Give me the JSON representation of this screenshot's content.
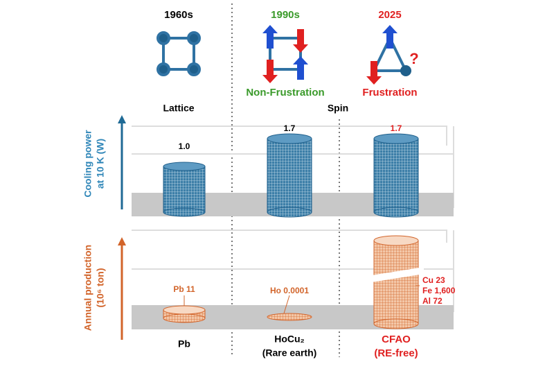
{
  "header": {
    "lattice_era": "1960s",
    "spin_era": "1990s",
    "frustration_era": "2025",
    "non_frustration": "Non-Frustration",
    "frustration": "Frustration",
    "lattice": "Lattice",
    "spin": "Spin"
  },
  "cooling_panel": {
    "axis_label": [
      "Cooling power",
      "at 10 K (W)"
    ],
    "labels": [
      "1.0",
      "1.7",
      "1.7"
    ]
  },
  "production_panel": {
    "axis_label": [
      "Annual production",
      "(10⁶ ton)"
    ],
    "labels": [
      "Pb 11",
      "Ho 0.0001"
    ],
    "cfao_labels": [
      "Cu 23",
      "Fe 1,600",
      "Al 72"
    ]
  },
  "materials": [
    {
      "name": "Pb"
    },
    {
      "name": "HoCu₂",
      "note": "(Rare earth)"
    },
    {
      "name": "CFAO",
      "note": "(RE-free)"
    }
  ]
}
